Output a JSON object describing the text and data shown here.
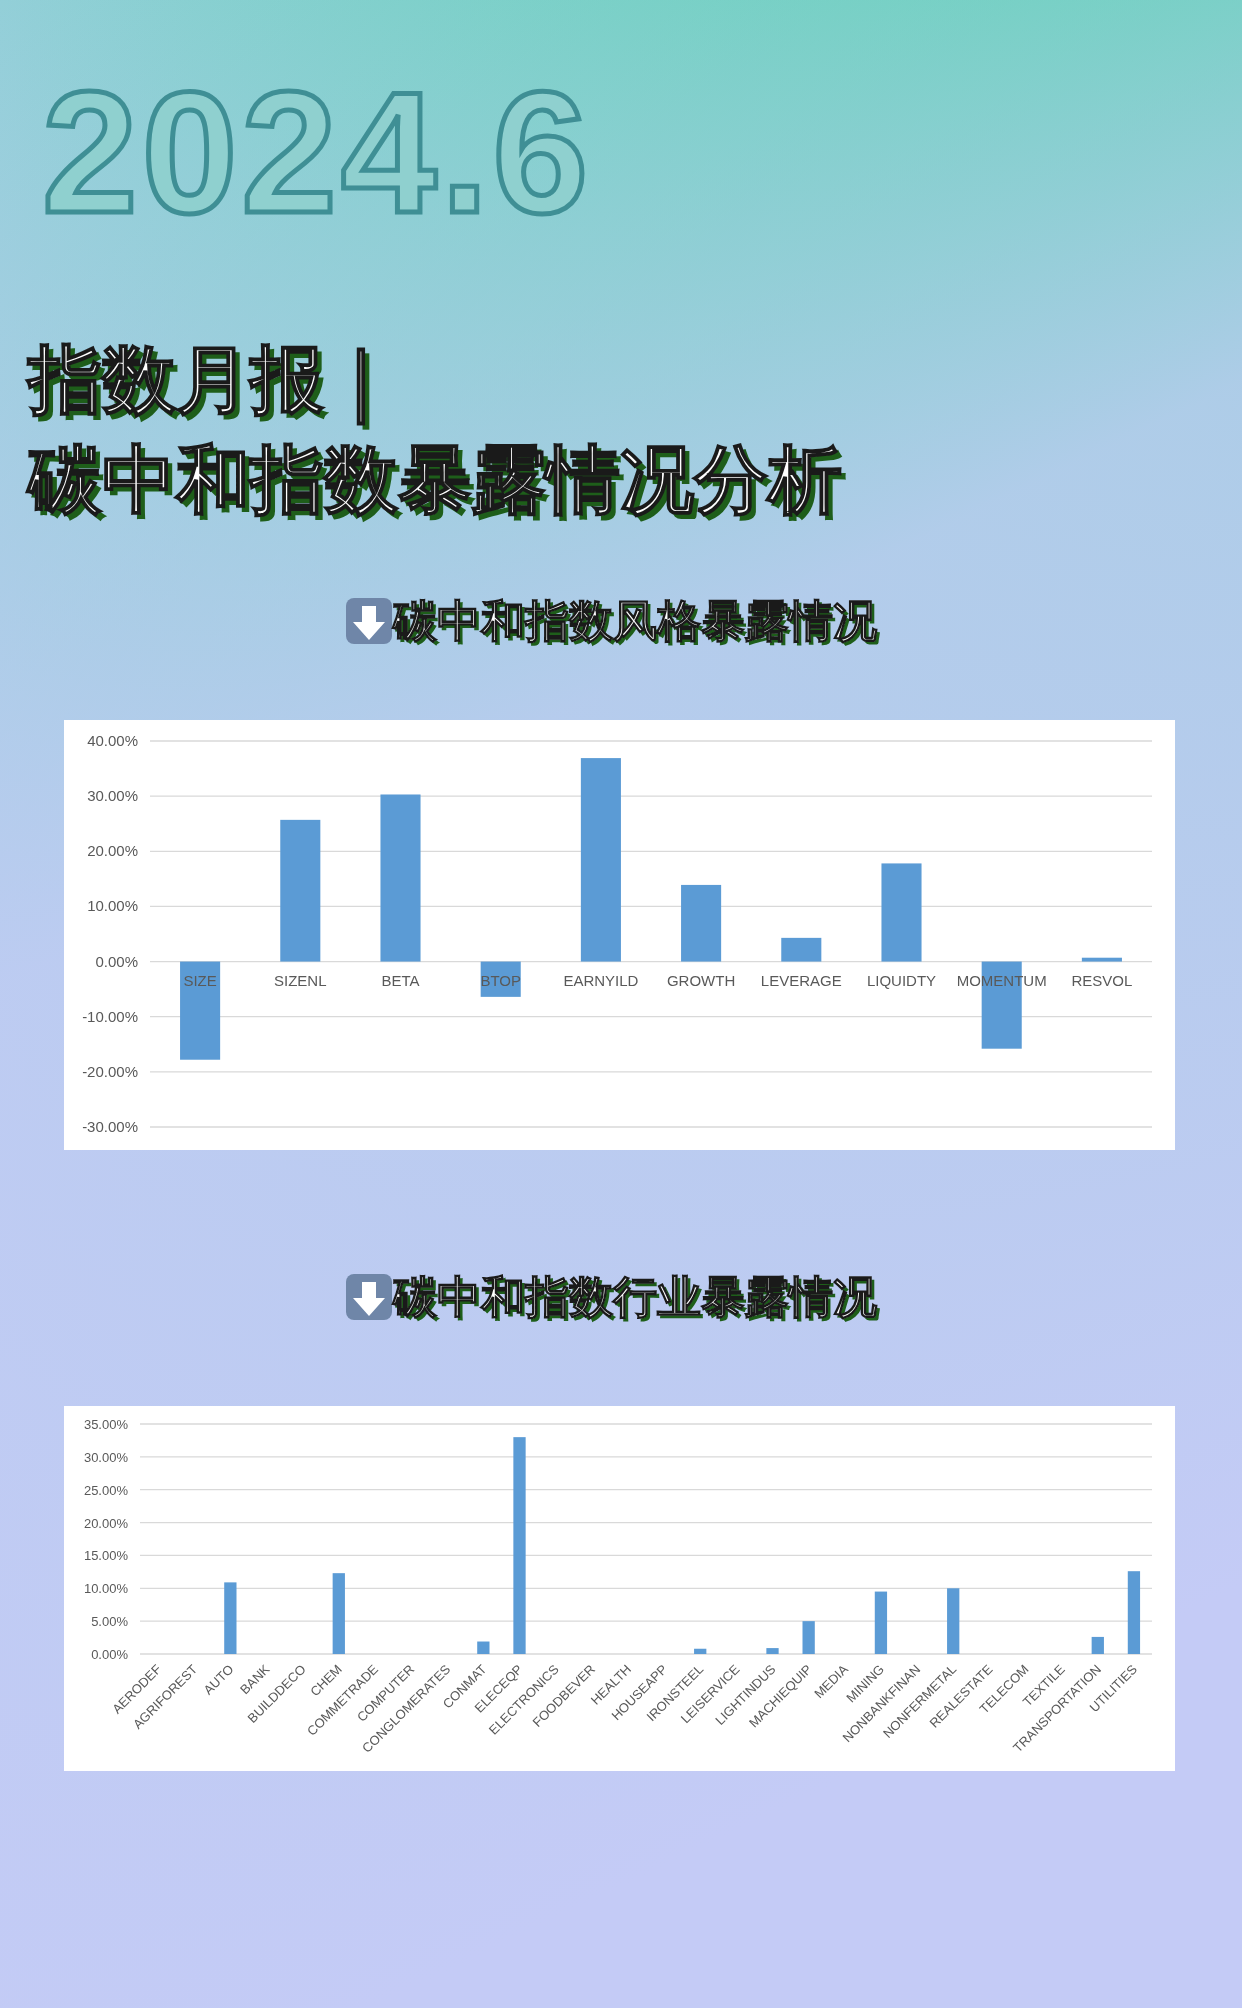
{
  "chart_data": [
    {
      "type": "bar",
      "title": "碳中和指数风格暴露情况",
      "annotations": [
        "2024.6",
        "指数月报｜",
        "碳中和指数暴露情况分析"
      ],
      "categories": [
        "SIZE",
        "SIZENL",
        "BETA",
        "BTOP",
        "EARNYILD",
        "GROWTH",
        "LEVERAGE",
        "LIQUIDTY",
        "MOMENTUM",
        "RESVOL"
      ],
      "values": [
        -17.8,
        25.7,
        30.3,
        -6.4,
        36.9,
        13.9,
        4.3,
        17.8,
        -15.8,
        0.7
      ],
      "color": "#5b9bd5",
      "ylim": [
        -30,
        40
      ],
      "yticks": [
        {
          "value": -30,
          "label": "-30.00%"
        },
        {
          "value": -20,
          "label": "-20.00%"
        },
        {
          "value": -10,
          "label": "-10.00%"
        },
        {
          "value": 0,
          "label": "0.00%"
        },
        {
          "value": 10,
          "label": "10.00%"
        },
        {
          "value": 20,
          "label": "20.00%"
        },
        {
          "value": 30,
          "label": "30.00%"
        },
        {
          "value": 40,
          "label": "40.00%"
        }
      ],
      "grid": "y"
    },
    {
      "type": "bar",
      "title": "碳中和指数行业暴露情况",
      "categories": [
        "AERODEF",
        "AGRIFOREST",
        "AUTO",
        "BANK",
        "BUILDDECO",
        "CHEM",
        "COMMETRADE",
        "COMPUTER",
        "CONGLOMERATES",
        "CONMAT",
        "ELECEQP",
        "ELECTRONICS",
        "FOODBEVER",
        "HEALTH",
        "HOUSEAPP",
        "IRONSTEEL",
        "LEISERVICE",
        "LIGHTINDUS",
        "MACHIEQUIP",
        "MEDIA",
        "MINING",
        "NONBANKFINAN",
        "NONFERMETAL",
        "REALESTATE",
        "TELECOM",
        "TEXTILE",
        "TRANSPORTATION",
        "UTILITIES"
      ],
      "values": [
        0,
        0,
        10.9,
        0,
        0,
        12.3,
        0,
        0,
        0,
        1.9,
        33.0,
        0,
        0,
        0,
        0,
        0.8,
        0,
        0.9,
        5.0,
        0,
        9.5,
        0,
        10.0,
        0,
        0,
        0,
        2.6,
        12.6
      ],
      "color": "#5b9bd5",
      "ylim": [
        0,
        35
      ],
      "yticks": [
        {
          "value": 0,
          "label": "0.00%"
        },
        {
          "value": 5,
          "label": "5.00%"
        },
        {
          "value": 10,
          "label": "10.00%"
        },
        {
          "value": 15,
          "label": "15.00%"
        },
        {
          "value": 20,
          "label": "20.00%"
        },
        {
          "value": 25,
          "label": "25.00%"
        },
        {
          "value": 30,
          "label": "30.00%"
        },
        {
          "value": 35,
          "label": "35.00%"
        }
      ],
      "grid": "y"
    }
  ]
}
